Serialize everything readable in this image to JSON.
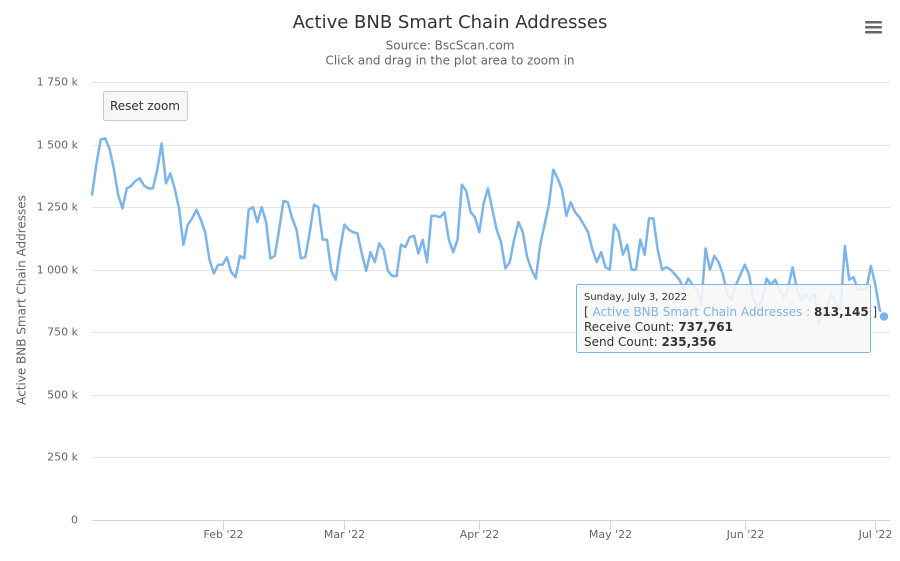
{
  "chart_data": {
    "type": "line",
    "title": "Active BNB Smart Chain Addresses",
    "subtitle": [
      "Source: BscScan.com",
      "Click and drag in the plot area to zoom in"
    ],
    "y_label": "Active BNB Smart Chain Addresses",
    "reset_zoom": "Reset zoom",
    "grid": true,
    "xlim": [
      "2022-01-02",
      "2022-07-03"
    ],
    "xticks": [
      {
        "value": "2022-02-01",
        "label": "Feb '22"
      },
      {
        "value": "2022-03-01",
        "label": "Mar '22"
      },
      {
        "value": "2022-04-01",
        "label": "Apr '22"
      },
      {
        "value": "2022-05-01",
        "label": "May '22"
      },
      {
        "value": "2022-06-01",
        "label": "Jun '22"
      },
      {
        "value": "2022-07-01",
        "label": "Jul '22"
      }
    ],
    "ylim": [
      0,
      1750
    ],
    "yticks": [
      0,
      {
        "value": 250,
        "label": "250 k"
      },
      {
        "value": 500,
        "label": "500 k"
      },
      {
        "value": 750,
        "label": "750 k"
      },
      {
        "value": 1000,
        "label": "1 000 k"
      },
      {
        "value": 1250,
        "label": "1 250 k"
      },
      {
        "value": 1500,
        "label": "1 500 k"
      },
      {
        "value": 1750,
        "label": "1 750 k"
      }
    ],
    "x": [
      "2022-01-02",
      "2022-01-03",
      "2022-01-04",
      "2022-01-05",
      "2022-01-06",
      "2022-01-07",
      "2022-01-08",
      "2022-01-09",
      "2022-01-10",
      "2022-01-11",
      "2022-01-12",
      "2022-01-13",
      "2022-01-14",
      "2022-01-15",
      "2022-01-16",
      "2022-01-17",
      "2022-01-18",
      "2022-01-19",
      "2022-01-20",
      "2022-01-21",
      "2022-01-22",
      "2022-01-23",
      "2022-01-24",
      "2022-01-25",
      "2022-01-26",
      "2022-01-27",
      "2022-01-28",
      "2022-01-29",
      "2022-01-30",
      "2022-01-31",
      "2022-02-01",
      "2022-02-02",
      "2022-02-03",
      "2022-02-04",
      "2022-02-05",
      "2022-02-06",
      "2022-02-07",
      "2022-02-08",
      "2022-02-09",
      "2022-02-10",
      "2022-02-11",
      "2022-02-12",
      "2022-02-13",
      "2022-02-14",
      "2022-02-15",
      "2022-02-16",
      "2022-02-17",
      "2022-02-18",
      "2022-02-19",
      "2022-02-20",
      "2022-02-21",
      "2022-02-22",
      "2022-02-23",
      "2022-02-24",
      "2022-02-25",
      "2022-02-26",
      "2022-02-27",
      "2022-02-28",
      "2022-03-01",
      "2022-03-02",
      "2022-03-03",
      "2022-03-04",
      "2022-03-05",
      "2022-03-06",
      "2022-03-07",
      "2022-03-08",
      "2022-03-09",
      "2022-03-10",
      "2022-03-11",
      "2022-03-12",
      "2022-03-13",
      "2022-03-14",
      "2022-03-15",
      "2022-03-16",
      "2022-03-17",
      "2022-03-18",
      "2022-03-19",
      "2022-03-20",
      "2022-03-21",
      "2022-03-22",
      "2022-03-23",
      "2022-03-24",
      "2022-03-25",
      "2022-03-26",
      "2022-03-27",
      "2022-03-28",
      "2022-03-29",
      "2022-03-30",
      "2022-03-31",
      "2022-04-01",
      "2022-04-02",
      "2022-04-03",
      "2022-04-04",
      "2022-04-05",
      "2022-04-06",
      "2022-04-07",
      "2022-04-08",
      "2022-04-09",
      "2022-04-10",
      "2022-04-11",
      "2022-04-12",
      "2022-04-13",
      "2022-04-14",
      "2022-04-15",
      "2022-04-16",
      "2022-04-17",
      "2022-04-18",
      "2022-04-19",
      "2022-04-20",
      "2022-04-21",
      "2022-04-22",
      "2022-04-23",
      "2022-04-24",
      "2022-04-25",
      "2022-04-26",
      "2022-04-27",
      "2022-04-28",
      "2022-04-29",
      "2022-04-30",
      "2022-05-01",
      "2022-05-02",
      "2022-05-03",
      "2022-05-04",
      "2022-05-05",
      "2022-05-06",
      "2022-05-07",
      "2022-05-08",
      "2022-05-09",
      "2022-05-10",
      "2022-05-11",
      "2022-05-12",
      "2022-05-13",
      "2022-05-14",
      "2022-05-15",
      "2022-05-16",
      "2022-05-17",
      "2022-05-18",
      "2022-05-19",
      "2022-05-20",
      "2022-05-21",
      "2022-05-22",
      "2022-05-23",
      "2022-05-24",
      "2022-05-25",
      "2022-05-26",
      "2022-05-27",
      "2022-05-28",
      "2022-05-29",
      "2022-05-30",
      "2022-05-31",
      "2022-06-01",
      "2022-06-02",
      "2022-06-03",
      "2022-06-04",
      "2022-06-05",
      "2022-06-06",
      "2022-06-07",
      "2022-06-08",
      "2022-06-09",
      "2022-06-10",
      "2022-06-11",
      "2022-06-12",
      "2022-06-13",
      "2022-06-14",
      "2022-06-15",
      "2022-06-16",
      "2022-06-17",
      "2022-06-18",
      "2022-06-19",
      "2022-06-20",
      "2022-06-21",
      "2022-06-22",
      "2022-06-23",
      "2022-06-24",
      "2022-06-25",
      "2022-06-26",
      "2022-06-27",
      "2022-06-28",
      "2022-06-29",
      "2022-06-30",
      "2022-07-01",
      "2022-07-02",
      "2022-07-03"
    ],
    "series": [
      {
        "name": "Active BNB Smart Chain Addresses",
        "color": "#7cb5ec",
        "values": [
          1300,
          1420,
          1520,
          1525,
          1485,
          1405,
          1300,
          1245,
          1325,
          1335,
          1355,
          1365,
          1335,
          1325,
          1325,
          1400,
          1505,
          1345,
          1385,
          1325,
          1245,
          1100,
          1180,
          1205,
          1240,
          1200,
          1150,
          1040,
          985,
          1020,
          1020,
          1050,
          990,
          970,
          1055,
          1045,
          1240,
          1250,
          1190,
          1250,
          1190,
          1045,
          1055,
          1160,
          1275,
          1270,
          1205,
          1160,
          1045,
          1050,
          1145,
          1260,
          1250,
          1120,
          1120,
          995,
          960,
          1080,
          1180,
          1160,
          1150,
          1145,
          1065,
          995,
          1070,
          1030,
          1105,
          1080,
          995,
          975,
          975,
          1100,
          1090,
          1130,
          1135,
          1065,
          1120,
          1030,
          1215,
          1215,
          1210,
          1230,
          1120,
          1070,
          1120,
          1340,
          1315,
          1230,
          1210,
          1150,
          1265,
          1325,
          1240,
          1160,
          1110,
          1005,
          1030,
          1120,
          1190,
          1150,
          1050,
          1000,
          965,
          1100,
          1180,
          1260,
          1400,
          1365,
          1320,
          1215,
          1270,
          1230,
          1210,
          1180,
          1150,
          1080,
          1030,
          1070,
          1010,
          1000,
          1180,
          1150,
          1060,
          1100,
          1000,
          1000,
          1120,
          1060,
          1205,
          1205,
          1080,
          1000,
          1010,
          1000,
          980,
          960,
          920,
          965,
          940,
          920,
          860,
          1085,
          1000,
          1055,
          1030,
          980,
          900,
          880,
          940,
          980,
          1020,
          980,
          880,
          850,
          880,
          965,
          940,
          960,
          920,
          890,
          930,
          1010,
          920,
          880,
          900,
          880,
          900,
          790,
          820,
          860,
          900,
          860,
          840,
          1095,
          960,
          970,
          920,
          920,
          930,
          1015,
          940,
          840,
          813.145
        ]
      }
    ],
    "tooltip": {
      "header": "Sunday, July 3, 2022",
      "open": "[",
      "separator": ":",
      "series_value": "813,145",
      "close": "]",
      "rows": [
        {
          "label": "Receive Count:",
          "value": "737,761"
        },
        {
          "label": "Send Count:",
          "value": "235,356"
        }
      ]
    }
  }
}
